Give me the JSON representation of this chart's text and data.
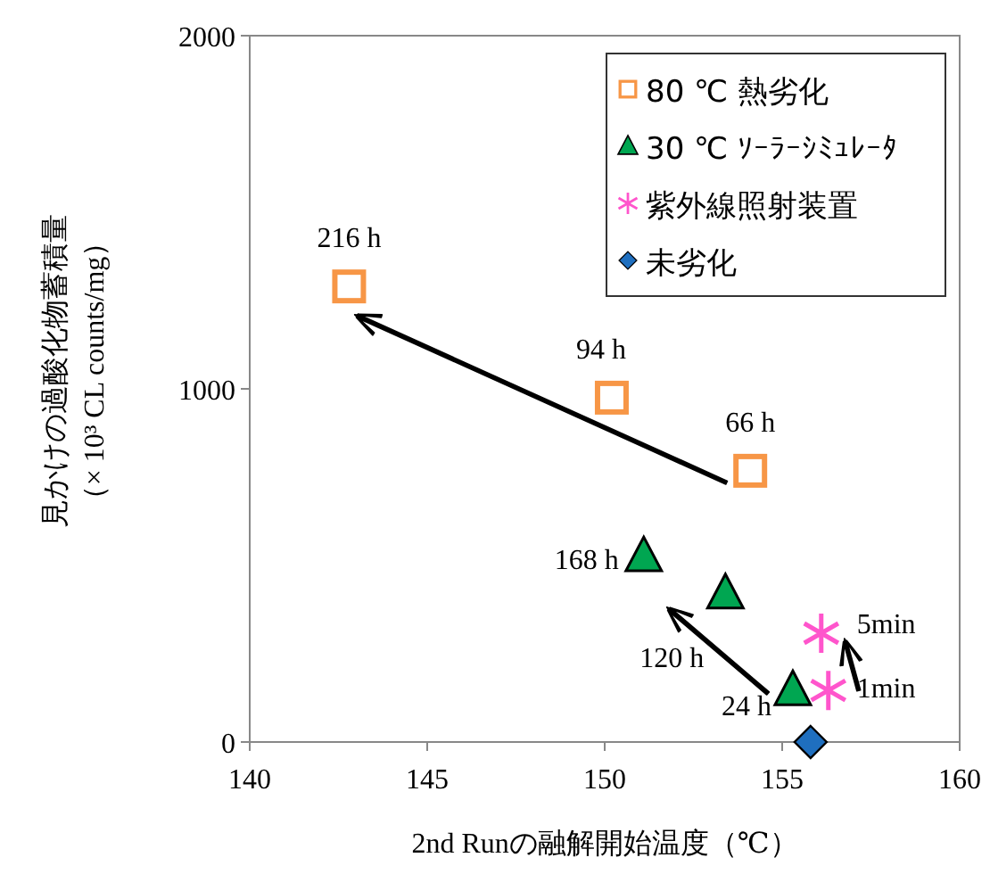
{
  "chart_data": {
    "type": "scatter",
    "xlabel": "2nd Runの融解開始温度（℃）",
    "ylabel": "見かけの過酸化物蓄積量（× 10³ CL counts/mg）",
    "xlim": [
      140,
      160
    ],
    "xticks": [
      140,
      145,
      150,
      155,
      160
    ],
    "ylim": [
      0,
      2000
    ],
    "yticks": [
      0,
      1000,
      2000
    ],
    "grid": false,
    "legend": "top right",
    "series": [
      {
        "name": "80 ℃ 熱劣化",
        "color": "#f79646",
        "marker": "square",
        "x": [
          154.1,
          150.2,
          142.8
        ],
        "values": [
          768,
          975,
          1290
        ]
      },
      {
        "name": "30 ℃ ｿｰﾗｰｼﾐｭﾚｰﾀ",
        "color": "#00a651",
        "marker": "triangle",
        "x": [
          155.3,
          153.4,
          151.1
        ],
        "values": [
          146,
          420,
          525
        ]
      },
      {
        "name": "紫外線照射装置",
        "color": "#ff55cc",
        "marker": "cross",
        "x": [
          156.3,
          156.1
        ],
        "values": [
          146,
          308
        ]
      },
      {
        "name": "未劣化",
        "color": "#1f6fbf",
        "marker": "diamond",
        "x": [
          155.8
        ],
        "values": [
          0
        ]
      }
    ],
    "annotations": [
      {
        "text": "216 h",
        "x": 142.8,
        "y": 1290
      },
      {
        "text": "94 h",
        "x": 150.2,
        "y": 975
      },
      {
        "text": "66 h",
        "x": 154.1,
        "y": 768
      },
      {
        "text": "168 h",
        "x": 151.1,
        "y": 525
      },
      {
        "text": "120 h",
        "x": 153.4,
        "y": 420
      },
      {
        "text": "24 h",
        "x": 155.3,
        "y": 146
      },
      {
        "text": "5min",
        "x": 156.1,
        "y": 308
      },
      {
        "text": "1min",
        "x": 156.3,
        "y": 146
      }
    ]
  }
}
